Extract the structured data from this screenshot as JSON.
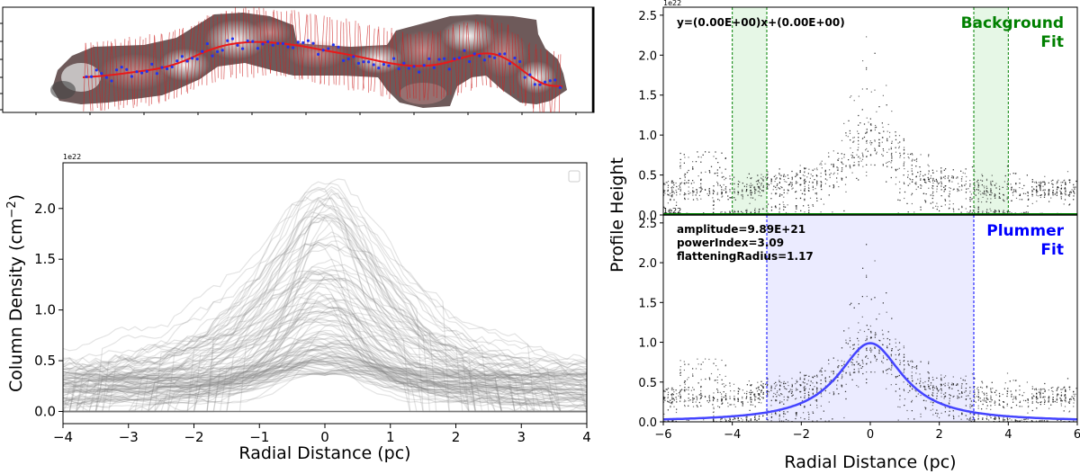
{
  "chart_data": [
    {
      "type": "heatmap",
      "panel": "filament-map",
      "description_visible": "grayscale column density map of filament with red spine curve, red perpendicular cuts and blue points",
      "colors": {
        "spine": "#e8191a",
        "cuts": "#cc2222",
        "points": "#2233ee"
      }
    },
    {
      "type": "line",
      "panel": "radial-profiles",
      "xlabel": "Radial Distance (pc)",
      "ylabel": "Column Density (cm$^{-2}$)",
      "ylabel_display": "Column Density (cm",
      "ylabel_sup": "−2",
      "ylabel_close": ")",
      "offset_text": "1e22",
      "xlim": [
        -4,
        4
      ],
      "ylim": [
        -0.12,
        2.45
      ],
      "xticks": [
        -4,
        -3,
        -2,
        -1,
        0,
        1,
        2,
        3,
        4
      ],
      "xtick_labels": [
        "−4",
        "−3",
        "−2",
        "−1",
        "0",
        "1",
        "2",
        "3",
        "4"
      ],
      "yticks": [
        0.0,
        0.5,
        1.0,
        1.5,
        2.0
      ],
      "ytick_labels": [
        "0.0",
        "0.5",
        "1.0",
        "1.5",
        "2.0"
      ],
      "series_style": {
        "color": "#808080",
        "opacity": 0.22
      },
      "legend": "top-right (empty)",
      "peak_values_range": [
        0.35,
        2.3
      ]
    },
    {
      "type": "scatter",
      "panel": "background-fit",
      "title_lines": [
        "Background",
        "Fit"
      ],
      "title_color": "#008000",
      "annotation": "y=(0.00E+00)x+(0.00E+00)",
      "offset_text": "1e22",
      "xlim": [
        -6,
        6
      ],
      "ylim": [
        0,
        2.6
      ],
      "yticks": [
        0.0,
        0.5,
        1.0,
        1.5,
        2.0,
        2.5
      ],
      "ytick_labels": [
        "0.0",
        "0.5",
        "1.0",
        "1.5",
        "2.0",
        "2.5"
      ],
      "shaded_x_ranges": [
        [
          -4,
          -3
        ],
        [
          3,
          4
        ]
      ],
      "shade_color": "#e6f7e6",
      "line_color": "#008000",
      "fit_line": {
        "slope": 0.0,
        "intercept": 0.0
      }
    },
    {
      "type": "scatter",
      "panel": "plummer-fit",
      "title_lines": [
        "Plummer",
        "Fit"
      ],
      "title_color": "#0000ff",
      "annotations": [
        "amplitude=9.89E+21",
        "powerIndex=3.09",
        "flatteningRadius=1.17"
      ],
      "offset_text": "1e22",
      "xlabel": "Radial Distance (pc)",
      "ylabel": "Profile Height",
      "xlim": [
        -6,
        6
      ],
      "ylim": [
        0,
        2.6
      ],
      "xticks": [
        -6,
        -4,
        -2,
        0,
        2,
        4,
        6
      ],
      "xtick_labels": [
        "−6",
        "−4",
        "−2",
        "0",
        "2",
        "4",
        "6"
      ],
      "yticks": [
        0.0,
        0.5,
        1.0,
        1.5,
        2.0,
        2.5
      ],
      "ytick_labels": [
        "0.0",
        "0.5",
        "1.0",
        "1.5",
        "2.0",
        "2.5"
      ],
      "shaded_x_ranges": [
        [
          -3,
          3
        ]
      ],
      "shade_color": "#ebebff",
      "line_color": "#0000ff",
      "fit": {
        "amplitude": 0.989,
        "powerIndex": 3.09,
        "flatteningRadius": 1.17
      },
      "fit_color": "#4444ff"
    }
  ]
}
